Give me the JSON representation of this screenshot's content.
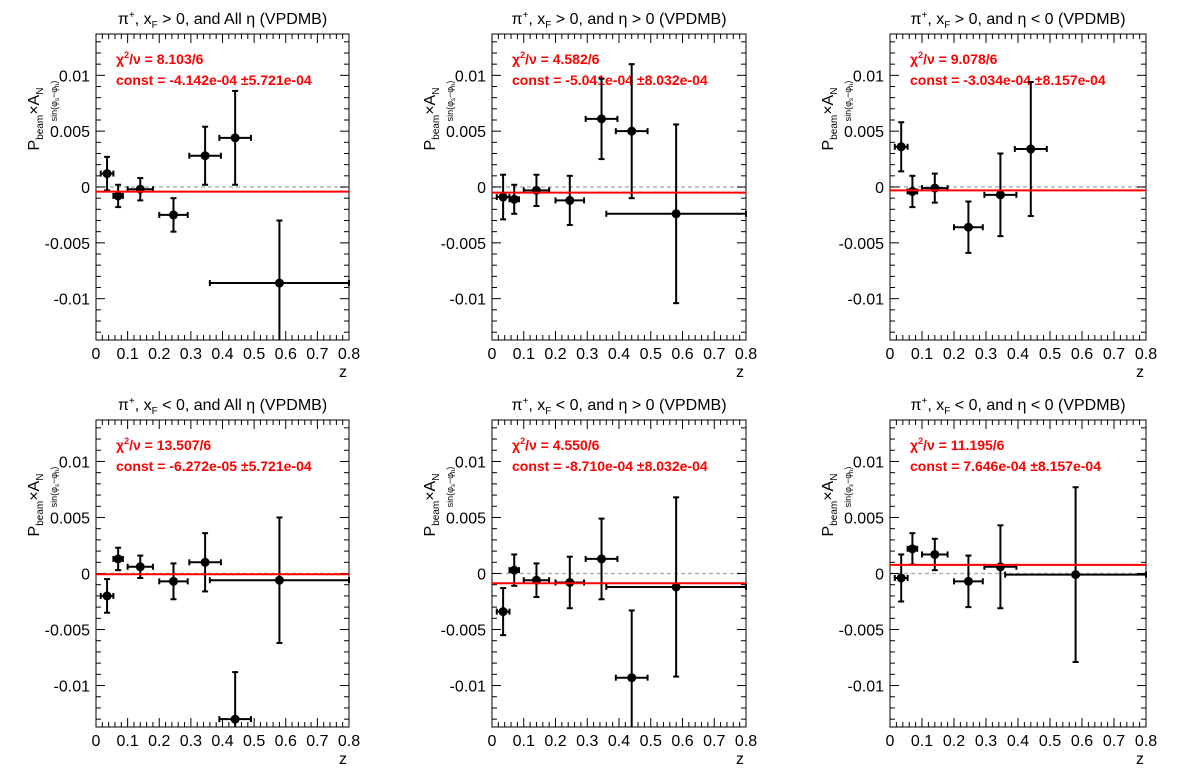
{
  "chart_data": [
    {
      "type": "scatter",
      "title": "π⁺, x_F > 0, and All  η (VPDMB)",
      "title_parts": [
        "π",
        "+",
        ", x",
        "F",
        " > 0, and All  η (VPDMB)"
      ],
      "xlabel": "z",
      "ylabel": "P_beam × A_N^sin(φ_s − φ_h)",
      "xlim": [
        0,
        0.8
      ],
      "ylim": [
        -0.0137,
        0.0137
      ],
      "x_ticks": [
        "0",
        "0.1",
        "0.2",
        "0.3",
        "0.4",
        "0.5",
        "0.6",
        "0.7",
        "0.8"
      ],
      "y_ticks": [
        "-0.01",
        "-0.005",
        "0",
        "0.005",
        "0.01"
      ],
      "chi2_value": "8.103/6",
      "const_text": "const = -4.142e-04  ±5.721e-04",
      "fit_const": -0.0004142,
      "points": [
        {
          "x": 0.035,
          "y": 0.0012,
          "xerr": 0.02,
          "yerr": 0.0015
        },
        {
          "x": 0.07,
          "y": -0.0008,
          "xerr": 0.015,
          "yerr": 0.001
        },
        {
          "x": 0.14,
          "y": -0.0002,
          "xerr": 0.04,
          "yerr": 0.001
        },
        {
          "x": 0.245,
          "y": -0.0025,
          "xerr": 0.045,
          "yerr": 0.0015
        },
        {
          "x": 0.345,
          "y": 0.0028,
          "xerr": 0.05,
          "yerr": 0.0026
        },
        {
          "x": 0.44,
          "y": 0.0044,
          "xerr": 0.05,
          "yerr": 0.0042
        },
        {
          "x": 0.58,
          "y": -0.0086,
          "xerr": 0.22,
          "yerr": 0.0056
        }
      ]
    },
    {
      "type": "scatter",
      "title": "π⁺, x_F > 0, and η > 0 (VPDMB)",
      "title_parts": [
        "π",
        "+",
        ", x",
        "F",
        " > 0, and η > 0 (VPDMB)"
      ],
      "xlabel": "z",
      "ylabel": "P_beam × A_N^sin(φ_s − φ_h)",
      "xlim": [
        0,
        0.8
      ],
      "ylim": [
        -0.0137,
        0.0137
      ],
      "x_ticks": [
        "0",
        "0.1",
        "0.2",
        "0.3",
        "0.4",
        "0.5",
        "0.6",
        "0.7",
        "0.8"
      ],
      "y_ticks": [
        "-0.01",
        "-0.005",
        "0",
        "0.005",
        "0.01"
      ],
      "chi2_value": "4.582/6",
      "const_text": "const = -5.041e-04  ±8.032e-04",
      "fit_const": -0.0005041,
      "points": [
        {
          "x": 0.035,
          "y": -0.0009,
          "xerr": 0.02,
          "yerr": 0.002
        },
        {
          "x": 0.07,
          "y": -0.0011,
          "xerr": 0.015,
          "yerr": 0.0013
        },
        {
          "x": 0.14,
          "y": -0.0003,
          "xerr": 0.04,
          "yerr": 0.0014
        },
        {
          "x": 0.245,
          "y": -0.0012,
          "xerr": 0.045,
          "yerr": 0.0022
        },
        {
          "x": 0.345,
          "y": 0.0061,
          "xerr": 0.05,
          "yerr": 0.0036
        },
        {
          "x": 0.44,
          "y": 0.005,
          "xerr": 0.05,
          "yerr": 0.006
        },
        {
          "x": 0.58,
          "y": -0.0024,
          "xerr": 0.22,
          "yerr": 0.008
        }
      ]
    },
    {
      "type": "scatter",
      "title": "π⁺, x_F > 0, and η < 0 (VPDMB)",
      "title_parts": [
        "π",
        "+",
        ", x",
        "F",
        " > 0, and η < 0 (VPDMB)"
      ],
      "xlabel": "z",
      "ylabel": "P_beam × A_N^sin(φ_s − φ_h)",
      "xlim": [
        0,
        0.8
      ],
      "ylim": [
        -0.0137,
        0.0137
      ],
      "x_ticks": [
        "0",
        "0.1",
        "0.2",
        "0.3",
        "0.4",
        "0.5",
        "0.6",
        "0.7",
        "0.8"
      ],
      "y_ticks": [
        "-0.01",
        "-0.005",
        "0",
        "0.005",
        "0.01"
      ],
      "chi2_value": "9.078/6",
      "const_text": "const = -3.034e-04  ±8.157e-04",
      "fit_const": -0.0003034,
      "points": [
        {
          "x": 0.035,
          "y": 0.0036,
          "xerr": 0.02,
          "yerr": 0.0022
        },
        {
          "x": 0.07,
          "y": -0.0004,
          "xerr": 0.015,
          "yerr": 0.0014
        },
        {
          "x": 0.14,
          "y": -0.0001,
          "xerr": 0.04,
          "yerr": 0.0013
        },
        {
          "x": 0.245,
          "y": -0.0036,
          "xerr": 0.045,
          "yerr": 0.0023
        },
        {
          "x": 0.345,
          "y": -0.0007,
          "xerr": 0.05,
          "yerr": 0.0037
        },
        {
          "x": 0.44,
          "y": 0.0034,
          "xerr": 0.05,
          "yerr": 0.006
        }
      ]
    },
    {
      "type": "scatter",
      "title": "π⁺, x_F < 0, and All  η (VPDMB)",
      "title_parts": [
        "π",
        "+",
        ", x",
        "F",
        " < 0, and All  η (VPDMB)"
      ],
      "xlabel": "z",
      "ylabel": "P_beam × A_N^sin(φ_s − φ_h)",
      "xlim": [
        0,
        0.8
      ],
      "ylim": [
        -0.0137,
        0.0137
      ],
      "x_ticks": [
        "0",
        "0.1",
        "0.2",
        "0.3",
        "0.4",
        "0.5",
        "0.6",
        "0.7",
        "0.8"
      ],
      "y_ticks": [
        "-0.01",
        "-0.005",
        "0",
        "0.005",
        "0.01"
      ],
      "chi2_value": "13.507/6",
      "const_text": "const = -6.272e-05  ±5.721e-04",
      "fit_const": -6.272e-05,
      "points": [
        {
          "x": 0.035,
          "y": -0.002,
          "xerr": 0.02,
          "yerr": 0.0015
        },
        {
          "x": 0.07,
          "y": 0.0013,
          "xerr": 0.015,
          "yerr": 0.001
        },
        {
          "x": 0.14,
          "y": 0.0006,
          "xerr": 0.04,
          "yerr": 0.001
        },
        {
          "x": 0.245,
          "y": -0.0007,
          "xerr": 0.045,
          "yerr": 0.0016
        },
        {
          "x": 0.345,
          "y": 0.001,
          "xerr": 0.05,
          "yerr": 0.0026
        },
        {
          "x": 0.44,
          "y": -0.013,
          "xerr": 0.05,
          "yerr": 0.0042
        },
        {
          "x": 0.58,
          "y": -0.0006,
          "xerr": 0.22,
          "yerr": 0.0056
        }
      ]
    },
    {
      "type": "scatter",
      "title": "π⁺, x_F < 0, and η > 0 (VPDMB)",
      "title_parts": [
        "π",
        "+",
        ", x",
        "F",
        " < 0, and η > 0 (VPDMB)"
      ],
      "xlabel": "z",
      "ylabel": "P_beam × A_N^sin(φ_s − φ_h)",
      "xlim": [
        0,
        0.8
      ],
      "ylim": [
        -0.0137,
        0.0137
      ],
      "x_ticks": [
        "0",
        "0.1",
        "0.2",
        "0.3",
        "0.4",
        "0.5",
        "0.6",
        "0.7",
        "0.8"
      ],
      "y_ticks": [
        "-0.01",
        "-0.005",
        "0",
        "0.005",
        "0.01"
      ],
      "chi2_value": "4.550/6",
      "const_text": "const = -8.710e-04  ±8.032e-04",
      "fit_const": -0.000871,
      "points": [
        {
          "x": 0.035,
          "y": -0.0034,
          "xerr": 0.02,
          "yerr": 0.0021
        },
        {
          "x": 0.07,
          "y": 0.0003,
          "xerr": 0.015,
          "yerr": 0.0014
        },
        {
          "x": 0.14,
          "y": -0.0006,
          "xerr": 0.04,
          "yerr": 0.0015
        },
        {
          "x": 0.245,
          "y": -0.0008,
          "xerr": 0.045,
          "yerr": 0.0023
        },
        {
          "x": 0.345,
          "y": 0.0013,
          "xerr": 0.05,
          "yerr": 0.0036
        },
        {
          "x": 0.44,
          "y": -0.0093,
          "xerr": 0.05,
          "yerr": 0.006
        },
        {
          "x": 0.58,
          "y": -0.0012,
          "xerr": 0.22,
          "yerr": 0.008
        }
      ]
    },
    {
      "type": "scatter",
      "title": "π⁺, x_F < 0, and η < 0 (VPDMB)",
      "title_parts": [
        "π",
        "+",
        ", x",
        "F",
        " < 0, and η < 0 (VPDMB)"
      ],
      "xlabel": "z",
      "ylabel": "P_beam × A_N^sin(φ_s − φ_h)",
      "xlim": [
        0,
        0.8
      ],
      "ylim": [
        -0.0137,
        0.0137
      ],
      "x_ticks": [
        "0",
        "0.1",
        "0.2",
        "0.3",
        "0.4",
        "0.5",
        "0.6",
        "0.7",
        "0.8"
      ],
      "y_ticks": [
        "-0.01",
        "-0.005",
        "0",
        "0.005",
        "0.01"
      ],
      "chi2_value": "11.195/6",
      "const_text": "const = 7.646e-04  ±8.157e-04",
      "fit_const": 0.0007646,
      "points": [
        {
          "x": 0.035,
          "y": -0.0004,
          "xerr": 0.02,
          "yerr": 0.0021
        },
        {
          "x": 0.07,
          "y": 0.0022,
          "xerr": 0.015,
          "yerr": 0.0014
        },
        {
          "x": 0.14,
          "y": 0.0017,
          "xerr": 0.04,
          "yerr": 0.0014
        },
        {
          "x": 0.245,
          "y": -0.0007,
          "xerr": 0.045,
          "yerr": 0.0023
        },
        {
          "x": 0.345,
          "y": 0.0006,
          "xerr": 0.05,
          "yerr": 0.0037
        },
        {
          "x": 0.58,
          "y": -0.0001,
          "xerr": 0.22,
          "yerr": 0.0078
        }
      ]
    }
  ],
  "colors": {
    "fit_line": "#ff0000",
    "stats_text": "#ff0000",
    "points": "#000000",
    "zero_line": "#b4b4b4"
  }
}
